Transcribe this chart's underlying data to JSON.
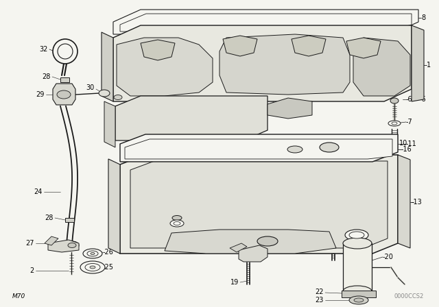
{
  "bg_color": "#f5f5f0",
  "line_color": "#1a1a1a",
  "text_color": "#000000",
  "watermark": "0000CCS2",
  "bottom_left": "M70",
  "label_font": 7.0
}
